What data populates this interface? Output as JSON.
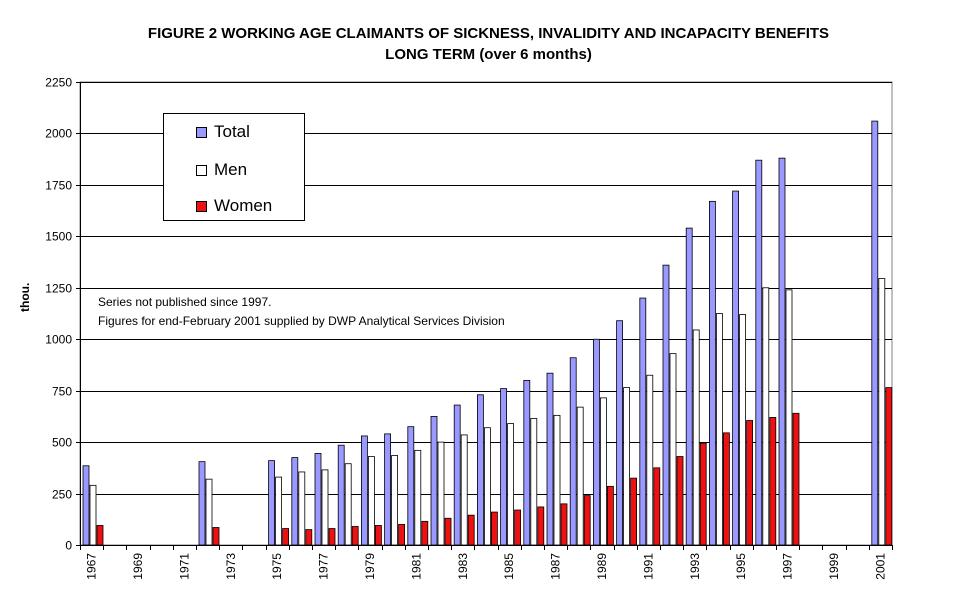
{
  "title": "FIGURE 2    WORKING AGE CLAIMANTS OF SICKNESS, INVALIDITY AND INCAPACITY BENEFITS",
  "subtitle": "LONG TERM (over 6 months)",
  "notes": [
    "Series not published since 1997.",
    "Figures for end-February 2001 supplied by DWP Analytical Services Division"
  ],
  "chart_data": {
    "type": "bar",
    "title": "FIGURE 2    WORKING AGE CLAIMANTS OF SICKNESS, INVALIDITY AND INCAPACITY BENEFITS",
    "subtitle": "LONG TERM (over 6 months)",
    "ylabel": "thou.",
    "xlabel": "",
    "ylim": [
      0,
      2250
    ],
    "yticks": [
      0,
      250,
      500,
      750,
      1000,
      1250,
      1500,
      1750,
      2000,
      2250
    ],
    "grid": true,
    "legend": "top-left",
    "categories": [
      "1967",
      "1968",
      "1969",
      "1970",
      "1971",
      "1972",
      "1973",
      "1974",
      "1975",
      "1976",
      "1977",
      "1978",
      "1979",
      "1980",
      "1981",
      "1982",
      "1983",
      "1984",
      "1985",
      "1986",
      "1987",
      "1988",
      "1989",
      "1990",
      "1991",
      "1992",
      "1993",
      "1994",
      "1995",
      "1996",
      "1997",
      "1998",
      "1999",
      "2000",
      "2001"
    ],
    "xtick_labels": [
      "1967",
      "",
      "1969",
      "",
      "1971",
      "",
      "1973",
      "",
      "1975",
      "",
      "1977",
      "",
      "1979",
      "",
      "1981",
      "",
      "1983",
      "",
      "1985",
      "",
      "1987",
      "",
      "1989",
      "",
      "1991",
      "",
      "1993",
      "",
      "1995",
      "",
      "1997",
      "",
      "1999",
      "",
      "2001"
    ],
    "series": [
      {
        "name": "Total",
        "color": "#9999ff",
        "values": [
          385,
          null,
          null,
          null,
          null,
          405,
          null,
          null,
          410,
          425,
          445,
          485,
          530,
          540,
          575,
          625,
          680,
          730,
          760,
          800,
          835,
          910,
          1000,
          1090,
          1200,
          1360,
          1540,
          1670,
          1720,
          1870,
          1880,
          null,
          null,
          null,
          2060
        ]
      },
      {
        "name": "Men",
        "color": "#ffffff",
        "values": [
          290,
          null,
          null,
          null,
          null,
          320,
          null,
          null,
          330,
          355,
          365,
          395,
          430,
          435,
          460,
          500,
          535,
          570,
          590,
          615,
          630,
          670,
          715,
          765,
          825,
          930,
          1045,
          1125,
          1120,
          1250,
          1240,
          null,
          null,
          null,
          1295
        ]
      },
      {
        "name": "Women",
        "color": "#ee1111",
        "values": [
          95,
          null,
          null,
          null,
          null,
          85,
          null,
          null,
          80,
          75,
          80,
          90,
          95,
          100,
          115,
          130,
          145,
          160,
          170,
          185,
          200,
          240,
          285,
          325,
          375,
          430,
          495,
          545,
          605,
          620,
          640,
          null,
          null,
          null,
          765
        ]
      }
    ]
  }
}
